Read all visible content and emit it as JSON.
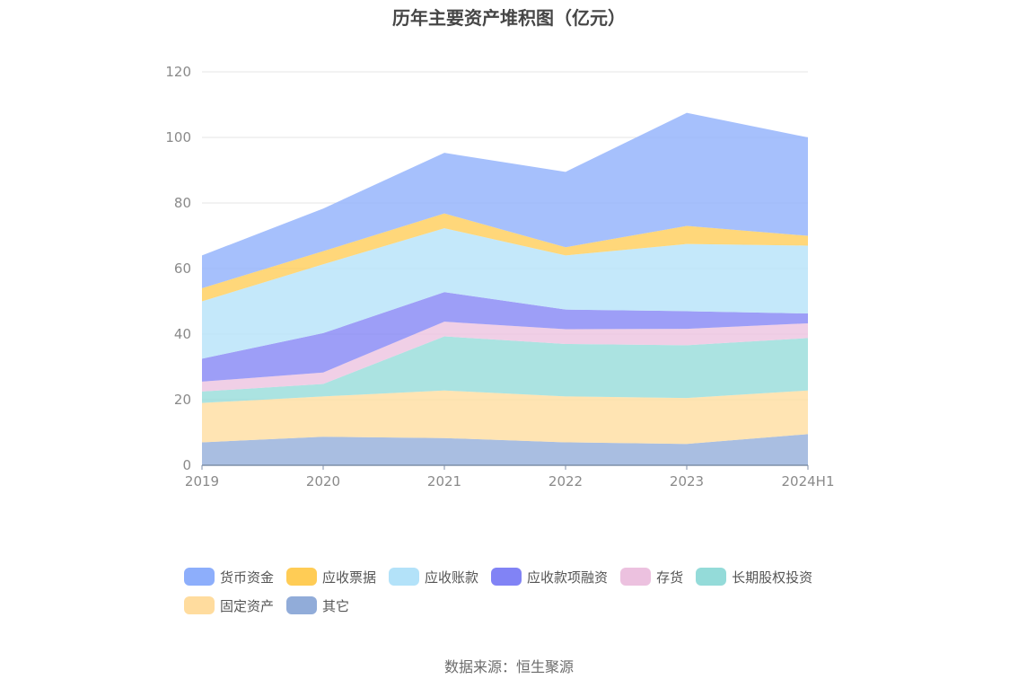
{
  "chart_data": {
    "type": "area",
    "stacked": true,
    "title": "历年主要资产堆积图（亿元）",
    "x": [
      "2019",
      "2020",
      "2021",
      "2022",
      "2023",
      "2024H1"
    ],
    "ylim": [
      0,
      120
    ],
    "yticks": [
      0,
      20,
      40,
      60,
      80,
      100,
      120
    ],
    "grid": true,
    "legend_position": "bottom",
    "series": [
      {
        "name": "其它",
        "color": "#91acd9",
        "values": [
          7,
          8.7,
          8.3,
          7,
          6.5,
          9.5
        ]
      },
      {
        "name": "固定资产",
        "color": "#ffdc9e",
        "values": [
          12,
          12.3,
          14.5,
          14,
          14,
          13.3
        ]
      },
      {
        "name": "长期股权投资",
        "color": "#94dbd9",
        "values": [
          3.5,
          3.8,
          16.5,
          16,
          16.1,
          16
        ]
      },
      {
        "name": "存货",
        "color": "#ecc1df",
        "values": [
          3,
          3.5,
          4.5,
          4.5,
          5,
          4.5
        ]
      },
      {
        "name": "应收款项融资",
        "color": "#8183f5",
        "values": [
          7,
          12,
          9,
          6,
          5.4,
          3
        ]
      },
      {
        "name": "应收账款",
        "color": "#b3e2f9",
        "values": [
          17.5,
          21,
          19.5,
          16.5,
          20.5,
          20.7
        ]
      },
      {
        "name": "应收票据",
        "color": "#ffcc55",
        "values": [
          4,
          4,
          4.5,
          2.5,
          5.5,
          3
        ]
      },
      {
        "name": "货币资金",
        "color": "#8daefb",
        "values": [
          10,
          13,
          18.5,
          23,
          34.5,
          30
        ]
      }
    ]
  },
  "legend_order": [
    "货币资金",
    "应收票据",
    "应收账款",
    "应收款项融资",
    "存货",
    "长期股权投资",
    "固定资产",
    "其它"
  ],
  "source": "数据来源：恒生聚源"
}
